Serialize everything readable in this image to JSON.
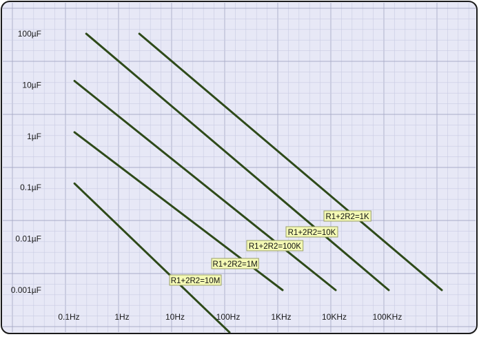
{
  "colors": {
    "background": "#e7e8f6",
    "minor_grid": "#c9cbe3",
    "major_grid": "#a9acc8",
    "border": "#1a1a1a",
    "line": "#2e4a19",
    "label_fill": "#f4f9b4",
    "label_stroke": "#9aa06a"
  },
  "chart_data": {
    "type": "line",
    "title": "",
    "xlabel": "",
    "ylabel": "",
    "x_scale": "log",
    "y_scale": "log",
    "xlim": [
      0.1,
      1000000
    ],
    "ylim": [
      0.001,
      100
    ],
    "grid": true,
    "x_ticks": [
      {
        "value": 0.1,
        "label": "0.1Hz"
      },
      {
        "value": 1,
        "label": "1Hz"
      },
      {
        "value": 10,
        "label": "10Hz"
      },
      {
        "value": 100,
        "label": "100Hz"
      },
      {
        "value": 1000,
        "label": "1KHz"
      },
      {
        "value": 10000,
        "label": "10KHz"
      },
      {
        "value": 100000,
        "label": "100KHz"
      }
    ],
    "y_ticks": [
      {
        "value": 100,
        "label": "100µF"
      },
      {
        "value": 10,
        "label": "10µF"
      },
      {
        "value": 1,
        "label": "1µF"
      },
      {
        "value": 0.1,
        "label": "0.1µF"
      },
      {
        "value": 0.01,
        "label": "0.01µF"
      },
      {
        "value": 0.001,
        "label": "0.001µF"
      }
    ],
    "series": [
      {
        "name": "R1+2R2=1K",
        "x": [
          2,
          1000000
        ],
        "y": [
          100,
          0.001
        ]
      },
      {
        "name": "R1+2R2=10K",
        "x": [
          0.2,
          100000
        ],
        "y": [
          100,
          0.001
        ]
      },
      {
        "name": "R1+2R2=100K",
        "x": [
          0.12,
          10000
        ],
        "y": [
          12,
          0.001
        ]
      },
      {
        "name": "R1+2R2=1M",
        "x": [
          0.12,
          1000
        ],
        "y": [
          1.2,
          0.001
        ]
      },
      {
        "name": "R1+2R2=10M",
        "x": [
          0.12,
          100
        ],
        "y": [
          0.12,
          0.00015
        ]
      }
    ]
  }
}
